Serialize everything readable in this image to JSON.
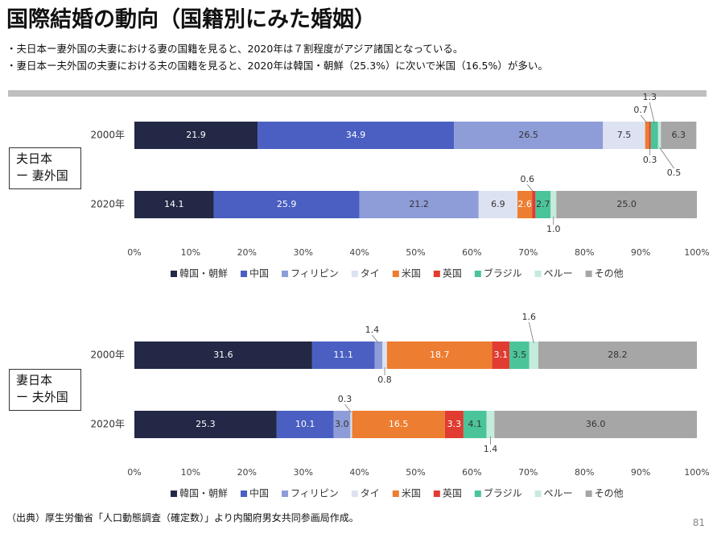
{
  "page": {
    "title": "国際結婚の動向（国籍別にみた婚姻）",
    "bullets": [
      "・夫日本ー妻外国の夫妻における妻の国籍を見ると、2020年は７割程度がアジア諸国となっている。",
      "・妻日本ー夫外国の夫妻における夫の国籍を見ると、2020年は韓国・朝鮮（25.3%）に次いで米国（16.5%）が多い。"
    ],
    "source": "（出典）厚生労働省「人口動態調査（確定数）」より内閣府男女共同参画局作成。",
    "page_number": "81"
  },
  "chart_data": [
    {
      "type": "bar",
      "orientation": "horizontal",
      "stacked": true,
      "group_label": [
        "夫日本",
        "ー 妻外国"
      ],
      "categories": [
        "2000年",
        "2020年"
      ],
      "xlim": [
        0,
        100
      ],
      "x_ticks": [
        "0%",
        "10%",
        "20%",
        "30%",
        "40%",
        "50%",
        "60%",
        "70%",
        "80%",
        "90%",
        "100%"
      ],
      "legend_position": "bottom",
      "series": [
        {
          "name": "韓国・朝鮮",
          "color": "#232846",
          "values": [
            21.9,
            14.1
          ]
        },
        {
          "name": "中国",
          "color": "#4a5fc1",
          "values": [
            34.9,
            25.9
          ]
        },
        {
          "name": "フィリピン",
          "color": "#8e9cd8",
          "values": [
            26.5,
            21.2
          ]
        },
        {
          "name": "タイ",
          "color": "#dde2f2",
          "values": [
            7.5,
            6.9
          ]
        },
        {
          "name": "米国",
          "color": "#ed7d31",
          "values": [
            0.7,
            2.6
          ]
        },
        {
          "name": "英国",
          "color": "#e03c31",
          "values": [
            0.3,
            0.6
          ]
        },
        {
          "name": "ブラジル",
          "color": "#4bc49a",
          "values": [
            1.3,
            2.7
          ]
        },
        {
          "name": "ペルー",
          "color": "#c5ebdc",
          "values": [
            0.5,
            1.0
          ]
        },
        {
          "name": "その他",
          "color": "#a6a6a6",
          "values": [
            6.3,
            25.0
          ]
        }
      ]
    },
    {
      "type": "bar",
      "orientation": "horizontal",
      "stacked": true,
      "group_label": [
        "妻日本",
        "ー 夫外国"
      ],
      "categories": [
        "2000年",
        "2020年"
      ],
      "xlim": [
        0,
        100
      ],
      "x_ticks": [
        "0%",
        "10%",
        "20%",
        "30%",
        "40%",
        "50%",
        "60%",
        "70%",
        "80%",
        "90%",
        "100%"
      ],
      "legend_position": "bottom",
      "series": [
        {
          "name": "韓国・朝鮮",
          "color": "#232846",
          "values": [
            31.6,
            25.3
          ]
        },
        {
          "name": "中国",
          "color": "#4a5fc1",
          "values": [
            11.1,
            10.1
          ]
        },
        {
          "name": "フィリピン",
          "color": "#8e9cd8",
          "values": [
            1.4,
            3.0
          ]
        },
        {
          "name": "タイ",
          "color": "#dde2f2",
          "values": [
            0.8,
            0.3
          ]
        },
        {
          "name": "米国",
          "color": "#ed7d31",
          "values": [
            18.7,
            16.5
          ]
        },
        {
          "name": "英国",
          "color": "#e03c31",
          "values": [
            3.1,
            3.3
          ]
        },
        {
          "name": "ブラジル",
          "color": "#4bc49a",
          "values": [
            3.5,
            4.1
          ]
        },
        {
          "name": "ペルー",
          "color": "#c5ebdc",
          "values": [
            1.6,
            1.4
          ]
        },
        {
          "name": "その他",
          "color": "#a6a6a6",
          "values": [
            28.2,
            36.0
          ]
        }
      ]
    }
  ]
}
